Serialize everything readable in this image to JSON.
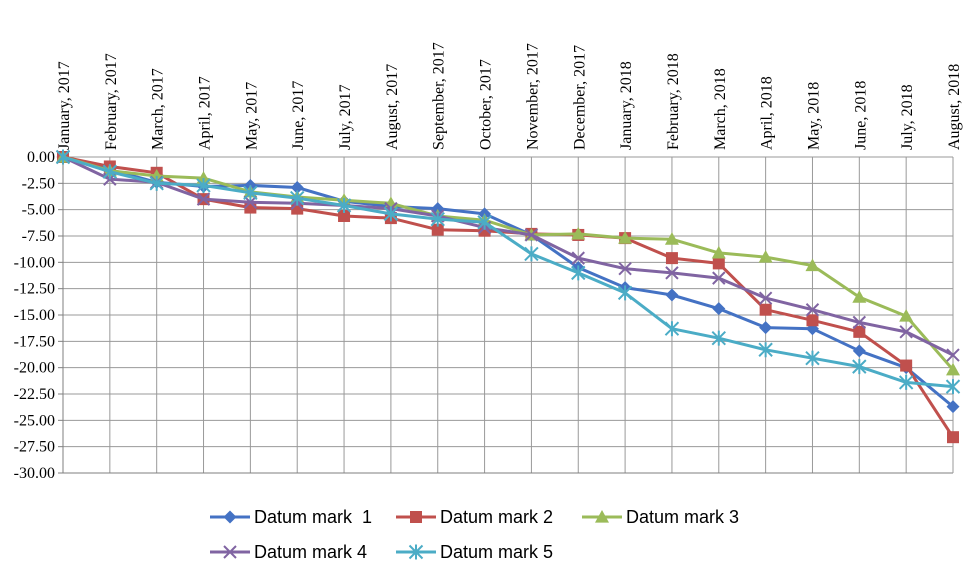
{
  "chart_data": {
    "type": "line",
    "title": "",
    "xlabel": "",
    "ylabel": "",
    "ylim": [
      -30,
      0
    ],
    "ytick_step": 2.5,
    "grid": true,
    "legend_position": "bottom",
    "categories": [
      "January, 2017",
      "February, 2017",
      "March, 2017",
      "April, 2017",
      "May, 2017",
      "June, 2017",
      "July, 2017",
      "August, 2017",
      "September, 2017",
      "October, 2017",
      "November, 2017",
      "December, 2017",
      "January, 2018",
      "February, 2018",
      "March, 2018",
      "April, 2018",
      "May, 2018",
      "June, 2018",
      "July, 2018",
      "August, 2018"
    ],
    "series": [
      {
        "name": "Datum mark  1",
        "color": "#4472C4",
        "marker": "diamond",
        "values": [
          0.0,
          -1.2,
          -2.4,
          -2.8,
          -2.7,
          -2.9,
          -4.2,
          -4.7,
          -4.9,
          -5.4,
          -7.4,
          -10.5,
          -12.4,
          -13.1,
          -14.4,
          -16.2,
          -16.3,
          -18.4,
          -20.0,
          -23.7
        ]
      },
      {
        "name": "Datum mark 2",
        "color": "#C0504D",
        "marker": "square",
        "values": [
          0.0,
          -0.9,
          -1.5,
          -4.0,
          -4.8,
          -4.9,
          -5.6,
          -5.8,
          -6.9,
          -7.0,
          -7.3,
          -7.4,
          -7.7,
          -9.6,
          -10.1,
          -14.5,
          -15.5,
          -16.6,
          -19.8,
          -26.6
        ]
      },
      {
        "name": "Datum mark 3",
        "color": "#9BBB59",
        "marker": "triangle",
        "values": [
          0.0,
          -1.3,
          -1.8,
          -2.0,
          -3.3,
          -3.8,
          -4.1,
          -4.4,
          -5.6,
          -6.0,
          -7.4,
          -7.3,
          -7.7,
          -7.8,
          -9.1,
          -9.5,
          -10.3,
          -13.3,
          -15.1,
          -20.2
        ]
      },
      {
        "name": "Datum mark 4",
        "color": "#8064A2",
        "marker": "x",
        "values": [
          0.0,
          -2.1,
          -2.4,
          -4.0,
          -4.3,
          -4.4,
          -4.6,
          -4.9,
          -5.6,
          -6.7,
          -7.4,
          -9.6,
          -10.6,
          -11.0,
          -11.5,
          -13.4,
          -14.5,
          -15.7,
          -16.6,
          -18.8
        ]
      },
      {
        "name": "Datum mark 5",
        "color": "#4BACC6",
        "marker": "star",
        "values": [
          0.0,
          -1.4,
          -2.5,
          -2.7,
          -3.4,
          -3.9,
          -4.6,
          -5.4,
          -5.9,
          -6.2,
          -9.2,
          -11.0,
          -12.9,
          -16.3,
          -17.2,
          -18.3,
          -19.1,
          -19.9,
          -21.4,
          -21.8
        ]
      }
    ]
  }
}
